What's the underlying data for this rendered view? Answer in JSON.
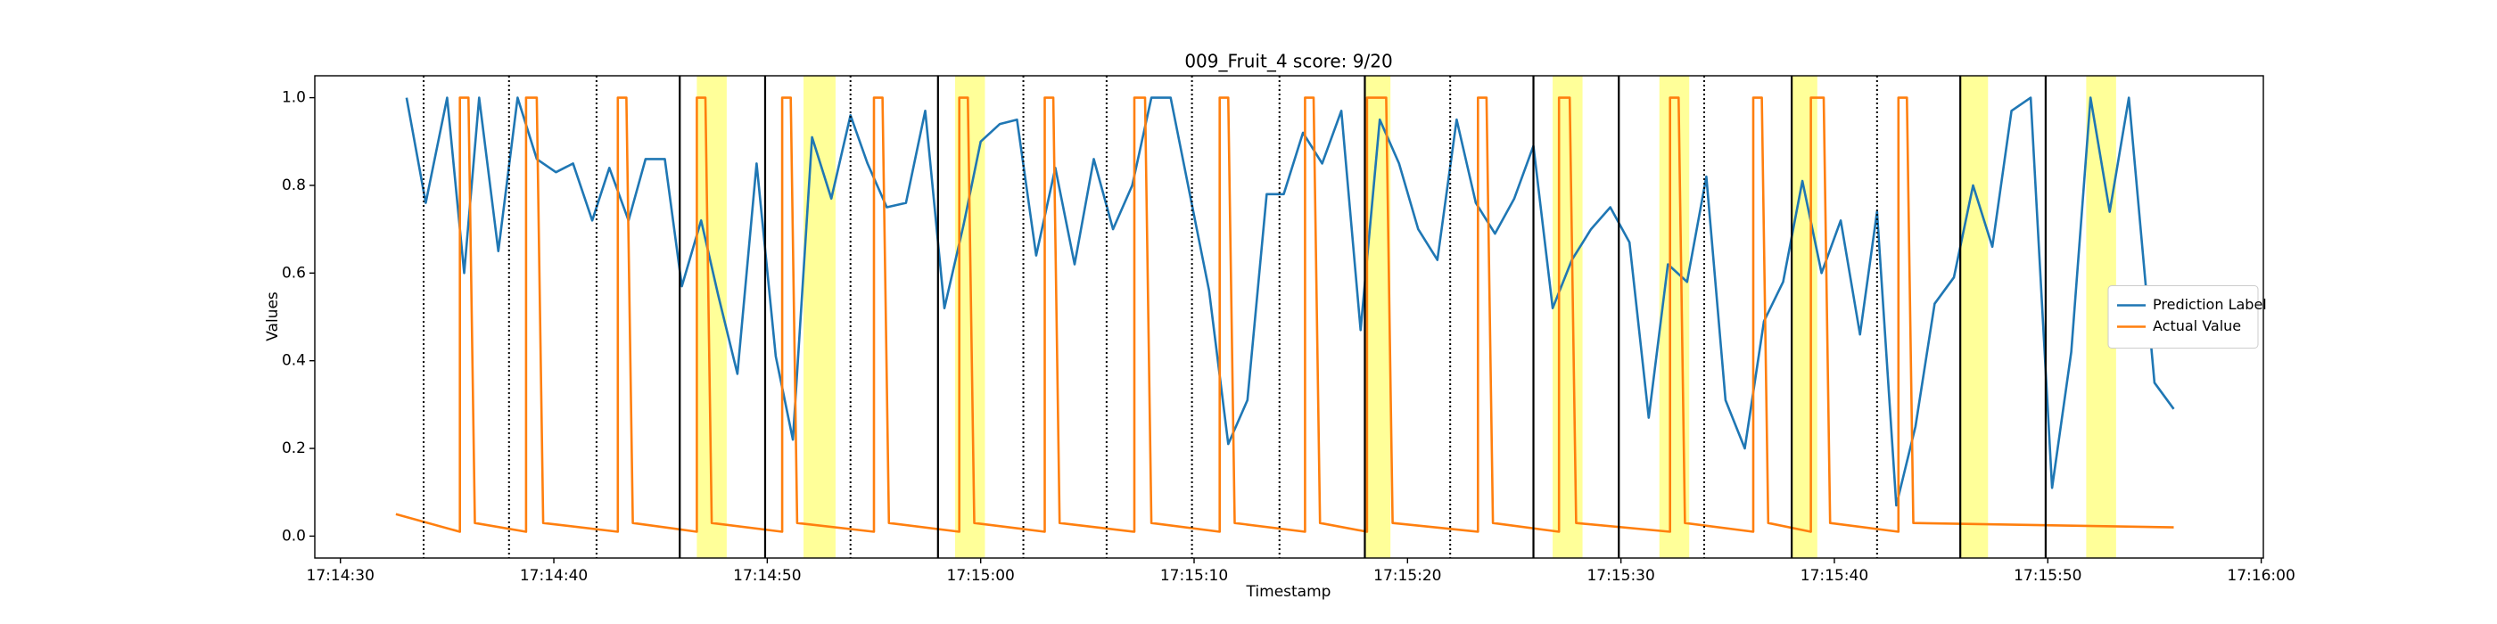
{
  "chart_data": {
    "type": "line",
    "title": "009_Fruit_4 score: 9/20",
    "x_label": "Timestamp",
    "y_label": "Values",
    "xlim": [
      62068.8,
      62160.1
    ],
    "xticks": [
      {
        "value": 62070,
        "label": "17:14:30"
      },
      {
        "value": 62080,
        "label": "17:14:40"
      },
      {
        "value": 62090,
        "label": "17:14:50"
      },
      {
        "value": 62100,
        "label": "17:15:00"
      },
      {
        "value": 62110,
        "label": "17:15:10"
      },
      {
        "value": 62120,
        "label": "17:15:20"
      },
      {
        "value": 62130,
        "label": "17:15:30"
      },
      {
        "value": 62140,
        "label": "17:15:40"
      },
      {
        "value": 62150,
        "label": "17:15:50"
      },
      {
        "value": 62160,
        "label": "17:16:00"
      }
    ],
    "ylim": [
      -0.05,
      1.05
    ],
    "yticks": [
      {
        "value": 0,
        "label": "0.0"
      },
      {
        "value": 0.2,
        "label": "0.2"
      },
      {
        "value": 0.4,
        "label": "0.4"
      },
      {
        "value": 0.6,
        "label": "0.6"
      },
      {
        "value": 0.8,
        "label": "0.8"
      },
      {
        "value": 1,
        "label": "1.0"
      }
    ],
    "grid": false,
    "legend": "center right",
    "series": [
      {
        "name": "Prediction Label",
        "color": "#1f77b4",
        "x": [
          62073.1,
          62074.0,
          62075.0,
          62075.8,
          62076.5,
          62077.4,
          62078.3,
          62079.2,
          62080.1,
          62080.9,
          62081.8,
          62082.6,
          62083.5,
          62084.3,
          62085.2,
          62086.0,
          62086.9,
          62087.7,
          62088.6,
          62089.5,
          62090.4,
          62091.2,
          62092.1,
          62093.0,
          62093.9,
          62094.7,
          62095.6,
          62096.5,
          62097.4,
          62098.3,
          62099.2,
          62100.0,
          62100.9,
          62101.7,
          62102.6,
          62103.5,
          62104.4,
          62105.3,
          62106.2,
          62107.1,
          62108.0,
          62108.9,
          62109.8,
          62110.7,
          62111.6,
          62112.5,
          62113.4,
          62114.2,
          62115.1,
          62116.0,
          62116.9,
          62117.8,
          62118.7,
          62119.6,
          62120.5,
          62121.4,
          62122.3,
          62123.2,
          62124.1,
          62125.0,
          62125.9,
          62126.8,
          62127.7,
          62128.6,
          62129.5,
          62130.4,
          62131.3,
          62132.2,
          62133.1,
          62134.0,
          62134.9,
          62135.8,
          62136.7,
          62137.6,
          62138.5,
          62139.4,
          62140.3,
          62141.2,
          62142.0,
          62142.9,
          62143.8,
          62144.7,
          62145.6,
          62146.5,
          62147.4,
          62148.3,
          62149.2,
          62150.2,
          62151.1,
          62152.0,
          62152.9,
          62153.8,
          62155.0,
          62155.9
        ],
        "values": [
          1.0,
          0.76,
          1.0,
          0.6,
          1.0,
          0.65,
          1.0,
          0.86,
          0.83,
          0.85,
          0.72,
          0.84,
          0.72,
          0.86,
          0.86,
          0.57,
          0.72,
          0.55,
          0.37,
          0.85,
          0.41,
          0.22,
          0.91,
          0.77,
          0.96,
          0.85,
          0.75,
          0.76,
          0.97,
          0.52,
          0.71,
          0.9,
          0.94,
          0.95,
          0.64,
          0.84,
          0.62,
          0.86,
          0.7,
          0.8,
          1.0,
          1.0,
          0.78,
          0.56,
          0.21,
          0.31,
          0.78,
          0.78,
          0.92,
          0.85,
          0.97,
          0.47,
          0.95,
          0.85,
          0.7,
          0.63,
          0.95,
          0.76,
          0.69,
          0.77,
          0.89,
          0.52,
          0.63,
          0.7,
          0.75,
          0.67,
          0.27,
          0.62,
          0.58,
          0.82,
          0.31,
          0.2,
          0.49,
          0.58,
          0.81,
          0.6,
          0.72,
          0.46,
          0.74,
          0.07,
          0.25,
          0.53,
          0.59,
          0.8,
          0.66,
          0.97,
          1.0,
          0.11,
          0.42,
          1.0,
          0.74,
          1.0,
          0.35,
          0.29
        ]
      },
      {
        "name": "Actual Value",
        "color": "#ff7f0e",
        "x": [
          62072.6,
          62075.6,
          62075.6,
          62076.0,
          62076.3,
          62078.7,
          62078.7,
          62079.2,
          62079.5,
          62083.0,
          62083.0,
          62083.4,
          62083.7,
          62086.7,
          62086.7,
          62087.1,
          62087.4,
          62090.7,
          62090.7,
          62091.1,
          62091.4,
          62095.0,
          62095.0,
          62095.4,
          62095.7,
          62099.0,
          62099.0,
          62099.4,
          62099.7,
          62103.0,
          62103.0,
          62103.4,
          62103.7,
          62107.2,
          62107.2,
          62107.7,
          62108.0,
          62111.2,
          62111.2,
          62111.6,
          62111.9,
          62115.2,
          62115.2,
          62115.6,
          62115.9,
          62118.1,
          62118.1,
          62119.0,
          62119.3,
          62123.3,
          62123.3,
          62123.7,
          62124.0,
          62127.1,
          62127.1,
          62127.6,
          62127.9,
          62132.3,
          62132.3,
          62132.7,
          62133.0,
          62136.2,
          62136.2,
          62136.6,
          62136.9,
          62138.9,
          62138.9,
          62139.5,
          62139.8,
          62143.0,
          62143.0,
          62143.4,
          62143.7,
          62155.9
        ],
        "values": [
          0.05,
          0.01,
          1.0,
          1.0,
          0.03,
          0.01,
          1.0,
          1.0,
          0.03,
          0.01,
          1.0,
          1.0,
          0.03,
          0.01,
          1.0,
          1.0,
          0.03,
          0.01,
          1.0,
          1.0,
          0.03,
          0.01,
          1.0,
          1.0,
          0.03,
          0.01,
          1.0,
          1.0,
          0.03,
          0.01,
          1.0,
          1.0,
          0.03,
          0.01,
          1.0,
          1.0,
          0.03,
          0.01,
          1.0,
          1.0,
          0.03,
          0.01,
          1.0,
          1.0,
          0.03,
          0.01,
          1.0,
          1.0,
          0.03,
          0.01,
          1.0,
          1.0,
          0.03,
          0.01,
          1.0,
          1.0,
          0.03,
          0.01,
          1.0,
          1.0,
          0.03,
          0.01,
          1.0,
          1.0,
          0.03,
          0.01,
          1.0,
          1.0,
          0.03,
          0.01,
          1.0,
          1.0,
          0.03,
          0.02
        ]
      }
    ],
    "spans": [
      [
        62086.7,
        62088.1
      ],
      [
        62091.7,
        62093.2
      ],
      [
        62098.8,
        62100.2
      ],
      [
        62118.0,
        62119.2
      ],
      [
        62126.8,
        62128.2
      ],
      [
        62131.8,
        62133.2
      ],
      [
        62138.0,
        62139.2
      ],
      [
        62145.9,
        62147.2
      ],
      [
        62151.8,
        62153.2
      ]
    ],
    "span_color": "#ffff99",
    "dotted_lines": [
      62073.9,
      62077.9,
      62082.0,
      62093.9,
      62102.0,
      62105.9,
      62109.9,
      62114.0,
      62122.0,
      62133.9,
      62142.0
    ],
    "solid_lines": [
      62085.9,
      62089.9,
      62098.0,
      62118.0,
      62125.9,
      62129.9,
      62138.0,
      62145.9,
      62149.9
    ]
  }
}
